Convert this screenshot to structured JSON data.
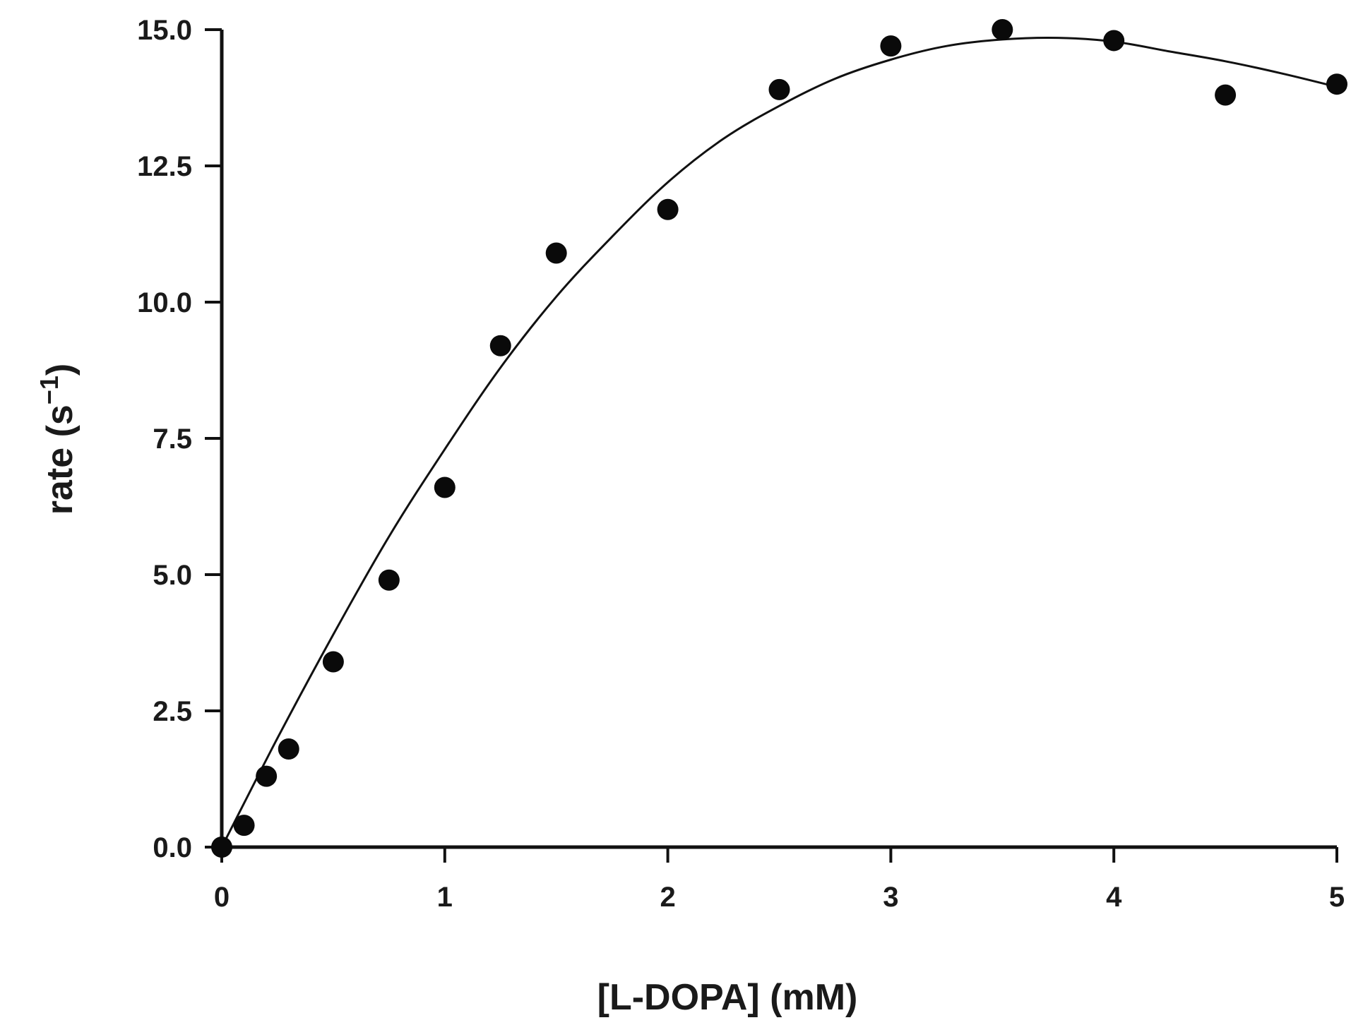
{
  "chart_data": {
    "type": "scatter",
    "xlabel": "[L-DOPA] (mM)",
    "ylabel_main": "rate (s",
    "ylabel_sup": "−1",
    "ylabel_close": ")",
    "xlim": [
      0,
      5
    ],
    "ylim": [
      0,
      15
    ],
    "x_ticks": [
      {
        "value": 0,
        "label": "0"
      },
      {
        "value": 1,
        "label": "1"
      },
      {
        "value": 2,
        "label": "2"
      },
      {
        "value": 3,
        "label": "3"
      },
      {
        "value": 4,
        "label": "4"
      },
      {
        "value": 5,
        "label": "5"
      }
    ],
    "y_ticks": [
      {
        "value": 0,
        "label": "0.0"
      },
      {
        "value": 2.5,
        "label": "2.5"
      },
      {
        "value": 5,
        "label": "5.0"
      },
      {
        "value": 7.5,
        "label": "7.5"
      },
      {
        "value": 10,
        "label": "10.0"
      },
      {
        "value": 12.5,
        "label": "12.5"
      },
      {
        "value": 15,
        "label": "15.0"
      }
    ],
    "grid": false,
    "points": [
      {
        "x": 0,
        "y": 0
      },
      {
        "x": 0.1,
        "y": 0.4
      },
      {
        "x": 0.2,
        "y": 1.3
      },
      {
        "x": 0.3,
        "y": 1.8
      },
      {
        "x": 0.5,
        "y": 3.4
      },
      {
        "x": 0.75,
        "y": 4.9
      },
      {
        "x": 1.0,
        "y": 6.6
      },
      {
        "x": 1.25,
        "y": 9.2
      },
      {
        "x": 1.5,
        "y": 10.9
      },
      {
        "x": 2.0,
        "y": 11.7
      },
      {
        "x": 2.5,
        "y": 13.9
      },
      {
        "x": 3.0,
        "y": 14.7
      },
      {
        "x": 3.5,
        "y": 15.0
      },
      {
        "x": 4.0,
        "y": 14.8
      },
      {
        "x": 4.5,
        "y": 13.8
      },
      {
        "x": 5.0,
        "y": 14.0
      }
    ],
    "fit_curve": {
      "x": [
        0,
        0.25,
        0.5,
        0.75,
        1.0,
        1.25,
        1.5,
        1.75,
        2.0,
        2.25,
        2.5,
        2.75,
        3.0,
        3.25,
        3.5,
        3.75,
        4.0,
        4.25,
        4.5,
        4.75,
        5.0
      ],
      "y": [
        0,
        2.0,
        3.9,
        5.7,
        7.3,
        8.8,
        10.1,
        11.2,
        12.2,
        13.0,
        13.6,
        14.1,
        14.45,
        14.7,
        14.82,
        14.85,
        14.78,
        14.6,
        14.42,
        14.2,
        13.95
      ]
    }
  }
}
